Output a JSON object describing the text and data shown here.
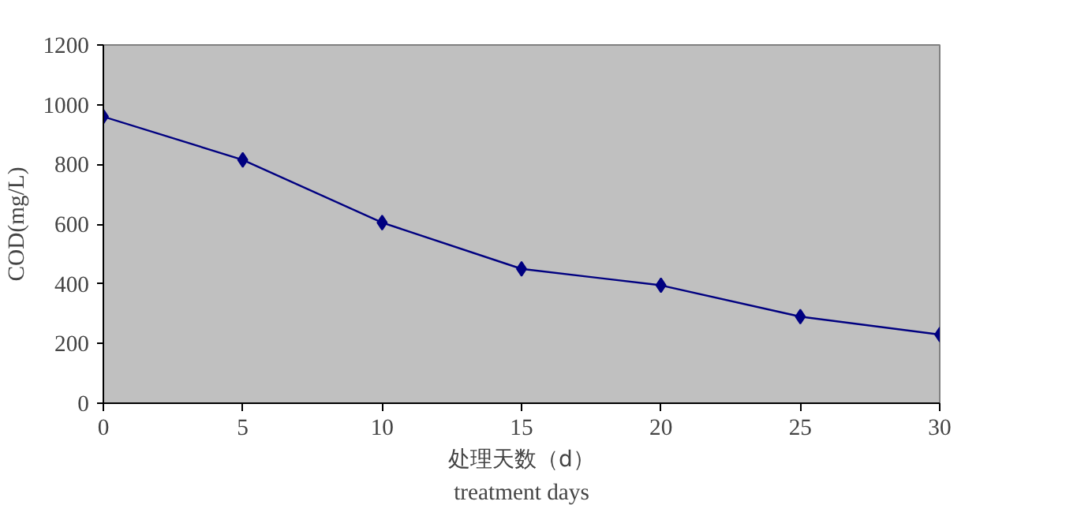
{
  "chart_data": {
    "type": "line",
    "xlabel": "处理天数（d）",
    "ylabel": "COD(mg/L)",
    "annotations": [
      "treatment days"
    ],
    "x": [
      0,
      5,
      10,
      15,
      20,
      25,
      30
    ],
    "series": [
      {
        "color": "#000080",
        "values": [
          960,
          815,
          605,
          450,
          395,
          290,
          230
        ]
      }
    ],
    "xlim": [
      0,
      30
    ],
    "xticks": [
      0,
      5,
      10,
      15,
      20,
      25,
      30
    ],
    "ylim": [
      0,
      1200
    ],
    "yticks": [
      0,
      200,
      400,
      600,
      800,
      1000,
      1200
    ],
    "grid": false,
    "marker": "diamond",
    "line_style": "solid"
  }
}
